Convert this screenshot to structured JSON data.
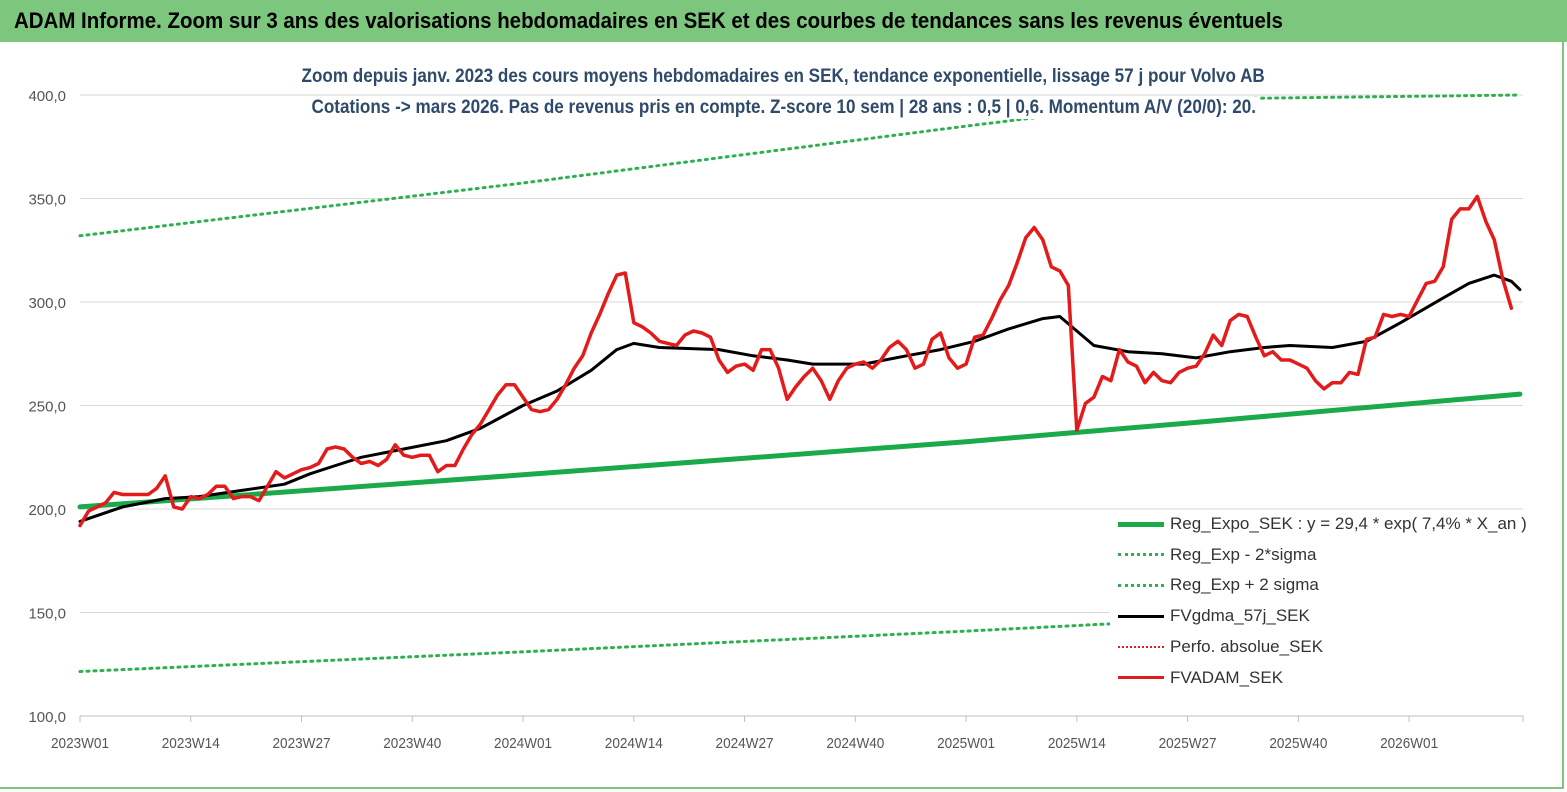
{
  "banner": {
    "title": "ADAM Informe. Zoom sur 3 ans des valorisations hebdomadaires en SEK et des courbes de tendances sans les revenus éventuels"
  },
  "colors": {
    "banner": "#7dc67d",
    "reg_expo": "#1aaa4a",
    "reg_sigma": "#2fb04f",
    "fvgdma": "#000000",
    "perfo": "#e02020",
    "fvadam": "#e31b1b"
  },
  "chart_data": {
    "type": "line",
    "title": "Zoom depuis janv. 2023 des cours moyens hebdomadaires en SEK, tendance exponentielle, lissage 57 j pour Volvo AB",
    "subtitle": "Cotations -> mars 2026. Pas de revenus pris en compte. Z-score 10 sem | 28 ans : 0,5 | 0,6. Momentum A/V (20/0): 20.",
    "ylim": [
      100,
      400
    ],
    "yticks": [
      "100,0",
      "150,0",
      "200,0",
      "250,0",
      "300,0",
      "350,0",
      "400,0"
    ],
    "ytick_values": [
      100,
      150,
      200,
      250,
      300,
      350,
      400
    ],
    "xticks": [
      "2023W01",
      "2023W14",
      "2023W27",
      "2023W40",
      "2024W01",
      "2024W14",
      "2024W27",
      "2024W40",
      "2025W01",
      "2025W14",
      "2025W27",
      "2025W40",
      "2026W01"
    ],
    "xtick_index": [
      0,
      13,
      26,
      39,
      52,
      65,
      78,
      91,
      104,
      117,
      130,
      143,
      156
    ],
    "n_weeks": 170,
    "grid": "horizontal",
    "legend_position": "bottom-right",
    "series": [
      {
        "name": "Reg_Expo_SEK : y = 29,4 * exp( 7,4% *  X_an )",
        "style": "solid-thick",
        "points": [
          [
            0,
            201
          ],
          [
            52,
            216.5
          ],
          [
            104,
            232.5
          ],
          [
            117,
            237
          ],
          [
            130,
            241.5
          ],
          [
            169,
            255.5
          ]
        ]
      },
      {
        "name": "Reg_Exp - 2*sigma",
        "style": "dotted",
        "points": [
          [
            0,
            121.5
          ],
          [
            52,
            131
          ],
          [
            104,
            141
          ],
          [
            169,
            154.5
          ]
        ]
      },
      {
        "name": "Reg_Exp + 2 sigma",
        "style": "dotted",
        "points": [
          [
            0,
            332
          ],
          [
            52,
            357.5
          ],
          [
            104,
            385
          ],
          [
            130,
            398
          ],
          [
            169,
            400
          ]
        ]
      },
      {
        "name": "FVgdma_57j_SEK",
        "style": "solid",
        "points": [
          [
            0,
            194
          ],
          [
            5,
            201
          ],
          [
            10,
            205
          ],
          [
            14,
            206
          ],
          [
            19,
            209
          ],
          [
            24,
            212
          ],
          [
            27,
            217
          ],
          [
            30,
            221
          ],
          [
            33,
            225
          ],
          [
            38,
            229
          ],
          [
            43,
            233
          ],
          [
            47,
            239
          ],
          [
            52,
            250
          ],
          [
            56,
            257
          ],
          [
            60,
            267
          ],
          [
            63,
            277
          ],
          [
            65,
            280
          ],
          [
            68,
            278
          ],
          [
            75,
            277
          ],
          [
            79,
            274
          ],
          [
            83,
            272
          ],
          [
            86,
            270
          ],
          [
            92,
            270
          ],
          [
            97,
            274
          ],
          [
            101,
            277
          ],
          [
            105,
            281
          ],
          [
            109,
            287
          ],
          [
            113,
            292
          ],
          [
            115,
            293
          ],
          [
            117,
            286
          ],
          [
            119,
            279
          ],
          [
            123,
            276
          ],
          [
            127,
            275
          ],
          [
            131,
            273
          ],
          [
            135,
            276
          ],
          [
            139,
            278
          ],
          [
            142,
            279
          ],
          [
            147,
            278
          ],
          [
            151,
            281
          ],
          [
            155,
            290
          ],
          [
            160,
            302
          ],
          [
            163,
            309
          ],
          [
            166,
            313
          ],
          [
            168,
            310
          ],
          [
            169,
            306
          ]
        ]
      },
      {
        "name": "Perfo. absolue_SEK",
        "style": "dotted",
        "points": []
      },
      {
        "name": "FVADAM_SEK",
        "style": "solid-thick",
        "points": [
          [
            0,
            192
          ],
          [
            1,
            199
          ],
          [
            3,
            203
          ],
          [
            4,
            208
          ],
          [
            5,
            207
          ],
          [
            8,
            207
          ],
          [
            9,
            210
          ],
          [
            10,
            216
          ],
          [
            11,
            201
          ],
          [
            12,
            200
          ],
          [
            13,
            206
          ],
          [
            14,
            205
          ],
          [
            15,
            207
          ],
          [
            16,
            211
          ],
          [
            17,
            211
          ],
          [
            18,
            205
          ],
          [
            19,
            206
          ],
          [
            20,
            206
          ],
          [
            21,
            204
          ],
          [
            22,
            211
          ],
          [
            23,
            218
          ],
          [
            24,
            215
          ],
          [
            25,
            217
          ],
          [
            26,
            219
          ],
          [
            27,
            220
          ],
          [
            28,
            222
          ],
          [
            29,
            229
          ],
          [
            30,
            230
          ],
          [
            31,
            229
          ],
          [
            32,
            225
          ],
          [
            33,
            222
          ],
          [
            34,
            223
          ],
          [
            35,
            221
          ],
          [
            36,
            224
          ],
          [
            37,
            231
          ],
          [
            38,
            226
          ],
          [
            39,
            225
          ],
          [
            40,
            226
          ],
          [
            41,
            226
          ],
          [
            42,
            218
          ],
          [
            43,
            221
          ],
          [
            44,
            221
          ],
          [
            45,
            229
          ],
          [
            46,
            236
          ],
          [
            47,
            241
          ],
          [
            48,
            248
          ],
          [
            49,
            255
          ],
          [
            50,
            260
          ],
          [
            51,
            260
          ],
          [
            52,
            254
          ],
          [
            53,
            248
          ],
          [
            54,
            247
          ],
          [
            55,
            248
          ],
          [
            56,
            253
          ],
          [
            57,
            260
          ],
          [
            58,
            268
          ],
          [
            59,
            274
          ],
          [
            60,
            285
          ],
          [
            61,
            294
          ],
          [
            62,
            304
          ],
          [
            63,
            313
          ],
          [
            64,
            314
          ],
          [
            65,
            290
          ],
          [
            66,
            288
          ],
          [
            67,
            285
          ],
          [
            68,
            281
          ],
          [
            69,
            280
          ],
          [
            70,
            279
          ],
          [
            71,
            284
          ],
          [
            72,
            286
          ],
          [
            73,
            285
          ],
          [
            74,
            283
          ],
          [
            75,
            272
          ],
          [
            76,
            266
          ],
          [
            77,
            269
          ],
          [
            78,
            270
          ],
          [
            79,
            267
          ],
          [
            80,
            277
          ],
          [
            81,
            277
          ],
          [
            82,
            268
          ],
          [
            83,
            253
          ],
          [
            84,
            259
          ],
          [
            85,
            264
          ],
          [
            86,
            268
          ],
          [
            87,
            262
          ],
          [
            88,
            253
          ],
          [
            89,
            262
          ],
          [
            90,
            268
          ],
          [
            91,
            270
          ],
          [
            92,
            271
          ],
          [
            93,
            268
          ],
          [
            94,
            272
          ],
          [
            95,
            278
          ],
          [
            96,
            281
          ],
          [
            97,
            277
          ],
          [
            98,
            268
          ],
          [
            99,
            270
          ],
          [
            100,
            282
          ],
          [
            101,
            285
          ],
          [
            102,
            273
          ],
          [
            103,
            268
          ],
          [
            104,
            270
          ],
          [
            105,
            283
          ],
          [
            106,
            284
          ],
          [
            107,
            292
          ],
          [
            108,
            301
          ],
          [
            109,
            308
          ],
          [
            110,
            319
          ],
          [
            111,
            331
          ],
          [
            112,
            336
          ],
          [
            113,
            330
          ],
          [
            114,
            317
          ],
          [
            115,
            315
          ],
          [
            116,
            308
          ],
          [
            117,
            238
          ],
          [
            118,
            251
          ],
          [
            119,
            254
          ],
          [
            120,
            264
          ],
          [
            121,
            262
          ],
          [
            122,
            277
          ],
          [
            123,
            271
          ],
          [
            124,
            269
          ],
          [
            125,
            261
          ],
          [
            126,
            266
          ],
          [
            127,
            262
          ],
          [
            128,
            261
          ],
          [
            129,
            266
          ],
          [
            130,
            268
          ],
          [
            131,
            269
          ],
          [
            132,
            275
          ],
          [
            133,
            284
          ],
          [
            134,
            279
          ],
          [
            135,
            291
          ],
          [
            136,
            294
          ],
          [
            137,
            293
          ],
          [
            138,
            283
          ],
          [
            139,
            274
          ],
          [
            140,
            276
          ],
          [
            141,
            272
          ],
          [
            142,
            272
          ],
          [
            143,
            270
          ],
          [
            144,
            268
          ],
          [
            145,
            262
          ],
          [
            146,
            258
          ],
          [
            147,
            261
          ],
          [
            148,
            261
          ],
          [
            149,
            266
          ],
          [
            150,
            265
          ],
          [
            151,
            282
          ],
          [
            152,
            283
          ],
          [
            153,
            294
          ],
          [
            154,
            293
          ],
          [
            155,
            294
          ],
          [
            156,
            293
          ],
          [
            157,
            301
          ],
          [
            158,
            309
          ],
          [
            159,
            310
          ],
          [
            160,
            317
          ],
          [
            161,
            340
          ],
          [
            162,
            345
          ],
          [
            163,
            345
          ],
          [
            164,
            351
          ],
          [
            165,
            339
          ],
          [
            166,
            330
          ],
          [
            167,
            311
          ],
          [
            168,
            297
          ]
        ]
      }
    ]
  }
}
